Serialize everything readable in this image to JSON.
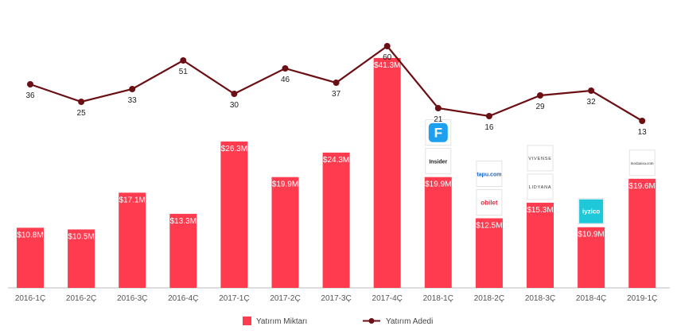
{
  "chart_data": {
    "type": "bar",
    "categories": [
      "2016-1Ç",
      "2016-2Ç",
      "2016-3Ç",
      "2016-4Ç",
      "2017-1Ç",
      "2017-2Ç",
      "2017-3Ç",
      "2017-4Ç",
      "2018-1Ç",
      "2018-2Ç",
      "2018-3Ç",
      "2018-4Ç",
      "2019-1Ç"
    ],
    "series": [
      {
        "name": "Yatırım Miktarı",
        "type": "bar",
        "unit": "$M",
        "color": "#ff3b50",
        "values": [
          10.8,
          10.5,
          17.1,
          13.3,
          26.3,
          19.9,
          24.3,
          41.3,
          19.9,
          12.5,
          15.3,
          10.9,
          19.6
        ],
        "labels": [
          "$10.8M",
          "$10.5M",
          "$17.1M",
          "$13.3M",
          "$26.3M",
          "$19.9M",
          "$24.3M",
          "$41.3M",
          "$19.9M",
          "$12.5M",
          "$15.3M",
          "$10.9M",
          "$19.6M"
        ]
      },
      {
        "name": "Yatırım Adedi",
        "type": "line",
        "color": "#6b0f14",
        "values": [
          36,
          25,
          33,
          51,
          30,
          46,
          37,
          60,
          21,
          16,
          29,
          32,
          13
        ]
      }
    ],
    "title": "",
    "xlabel": "",
    "ylabel": "",
    "legend_position": "bottom-center",
    "grid": false,
    "annotations": {
      "logos": [
        {
          "category": "2018-1Ç",
          "items": [
            "F",
            "Insider"
          ]
        },
        {
          "category": "2018-2Ç",
          "items": [
            "tapu.com",
            "obilet"
          ]
        },
        {
          "category": "2018-3Ç",
          "items": [
            "VIVENSE",
            "LIDYANA"
          ]
        },
        {
          "category": "2018-4Ç",
          "items": [
            "iyzico"
          ]
        },
        {
          "category": "2019-1Ç",
          "items": [
            "modanisa.com"
          ]
        }
      ]
    }
  }
}
